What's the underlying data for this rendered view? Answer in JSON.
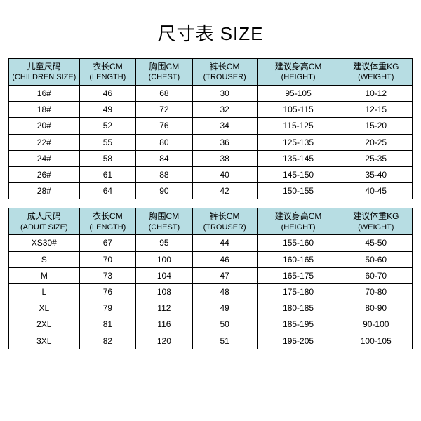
{
  "title": "尺寸表 SIZE",
  "colors": {
    "header_bg": "#b7dde3",
    "border": "#000000",
    "text": "#000000",
    "background": "#ffffff"
  },
  "children": {
    "headers": [
      {
        "top": "儿童尺码",
        "sub": "(CHILDREN SIZE)"
      },
      {
        "top": "衣长CM",
        "sub": "(LENGTH)"
      },
      {
        "top": "胸围CM",
        "sub": "(CHEST)"
      },
      {
        "top": "裤长CM",
        "sub": "(TROUSER)"
      },
      {
        "top": "建议身高CM",
        "sub": "(HEIGHT)"
      },
      {
        "top": "建议体重KG",
        "sub": "(WEIGHT)"
      }
    ],
    "rows": [
      {
        "c0": "16#",
        "c1": "46",
        "c2": "68",
        "c3": "30",
        "c4": "95-105",
        "c5": "10-12"
      },
      {
        "c0": "18#",
        "c1": "49",
        "c2": "72",
        "c3": "32",
        "c4": "105-115",
        "c5": "12-15"
      },
      {
        "c0": "20#",
        "c1": "52",
        "c2": "76",
        "c3": "34",
        "c4": "115-125",
        "c5": "15-20"
      },
      {
        "c0": "22#",
        "c1": "55",
        "c2": "80",
        "c3": "36",
        "c4": "125-135",
        "c5": "20-25"
      },
      {
        "c0": "24#",
        "c1": "58",
        "c2": "84",
        "c3": "38",
        "c4": "135-145",
        "c5": "25-35"
      },
      {
        "c0": "26#",
        "c1": "61",
        "c2": "88",
        "c3": "40",
        "c4": "145-150",
        "c5": "35-40"
      },
      {
        "c0": "28#",
        "c1": "64",
        "c2": "90",
        "c3": "42",
        "c4": "150-155",
        "c5": "40-45"
      }
    ]
  },
  "adult": {
    "headers": [
      {
        "top": "成人尺码",
        "sub": "(ADUIT SIZE)"
      },
      {
        "top": "衣长CM",
        "sub": "(LENGTH)"
      },
      {
        "top": "胸围CM",
        "sub": "(CHEST)"
      },
      {
        "top": "裤长CM",
        "sub": "(TROUSER)"
      },
      {
        "top": "建议身高CM",
        "sub": "(HEIGHT)"
      },
      {
        "top": "建议体重KG",
        "sub": "(WEIGHT)"
      }
    ],
    "rows": [
      {
        "c0": "XS30#",
        "c1": "67",
        "c2": "95",
        "c3": "44",
        "c4": "155-160",
        "c5": "45-50"
      },
      {
        "c0": "S",
        "c1": "70",
        "c2": "100",
        "c3": "46",
        "c4": "160-165",
        "c5": "50-60"
      },
      {
        "c0": "M",
        "c1": "73",
        "c2": "104",
        "c3": "47",
        "c4": "165-175",
        "c5": "60-70"
      },
      {
        "c0": "L",
        "c1": "76",
        "c2": "108",
        "c3": "48",
        "c4": "175-180",
        "c5": "70-80"
      },
      {
        "c0": "XL",
        "c1": "79",
        "c2": "112",
        "c3": "49",
        "c4": "180-185",
        "c5": "80-90"
      },
      {
        "c0": "2XL",
        "c1": "81",
        "c2": "116",
        "c3": "50",
        "c4": "185-195",
        "c5": "90-100"
      },
      {
        "c0": "3XL",
        "c1": "82",
        "c2": "120",
        "c3": "51",
        "c4": "195-205",
        "c5": "100-105"
      }
    ]
  }
}
